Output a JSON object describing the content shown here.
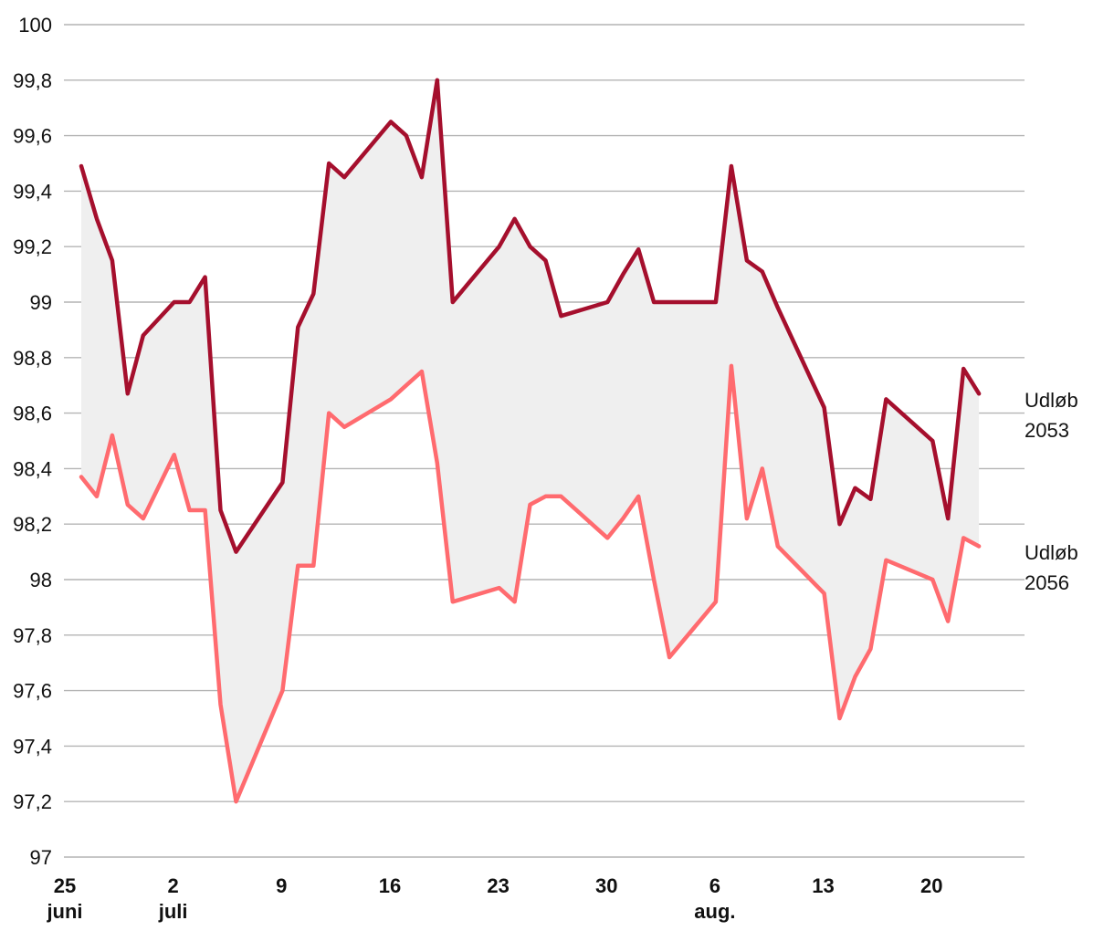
{
  "chart_data": {
    "type": "line",
    "title": "",
    "xlabel": "",
    "ylabel": "",
    "ylim": [
      97,
      100
    ],
    "yticks": [
      "100",
      "99,8",
      "99,6",
      "99,4",
      "99,2",
      "99",
      "98,8",
      "98,6",
      "98,4",
      "98,2",
      "98",
      "97,8",
      "97,6",
      "97,4",
      "97,2",
      "97"
    ],
    "xtick_labels": [
      {
        "day": 25,
        "line1": "25",
        "line2": "juni"
      },
      {
        "day": 32,
        "line1": "2",
        "line2": "juli"
      },
      {
        "day": 39,
        "line1": "9",
        "line2": ""
      },
      {
        "day": 46,
        "line1": "16",
        "line2": ""
      },
      {
        "day": 53,
        "line1": "23",
        "line2": ""
      },
      {
        "day": 60,
        "line1": "30",
        "line2": ""
      },
      {
        "day": 67,
        "line1": "6",
        "line2": "aug."
      },
      {
        "day": 74,
        "line1": "13",
        "line2": ""
      },
      {
        "day": 81,
        "line1": "20",
        "line2": ""
      }
    ],
    "x_days": [
      25,
      26,
      27,
      28,
      29,
      31,
      32,
      33,
      34,
      35,
      38,
      39,
      40,
      41,
      42,
      45,
      46,
      47,
      48,
      49,
      52,
      53,
      54,
      55,
      56,
      59,
      60,
      61,
      62,
      63,
      66,
      67,
      68,
      69,
      70,
      73,
      74,
      75,
      76,
      77,
      80,
      81,
      82,
      83
    ],
    "fill_between": true,
    "fill_color": "#efefef",
    "grid": true,
    "series": [
      {
        "name_lines": [
          "Udløb",
          "2053"
        ],
        "color": "#a50f2d",
        "values": [
          99.49,
          99.3,
          99.15,
          98.67,
          98.88,
          99.0,
          99.0,
          99.09,
          98.25,
          98.1,
          98.35,
          98.91,
          99.03,
          99.5,
          99.45,
          99.65,
          99.6,
          99.45,
          99.8,
          99.0,
          99.2,
          99.3,
          99.2,
          99.15,
          98.95,
          99.0,
          99.1,
          99.19,
          99.0,
          99.0,
          99.0,
          99.49,
          99.15,
          99.11,
          98.98,
          98.62,
          98.2,
          98.33,
          98.29,
          98.65,
          98.5,
          98.22,
          98.76,
          98.67
        ]
      },
      {
        "name_lines": [
          "Udløb",
          "2056"
        ],
        "color": "#ff6b6f",
        "values": [
          98.37,
          98.3,
          98.52,
          98.27,
          98.22,
          98.45,
          98.25,
          98.25,
          97.55,
          97.2,
          97.6,
          98.05,
          98.05,
          98.6,
          98.55,
          98.65,
          98.7,
          98.75,
          98.42,
          97.92,
          97.97,
          97.92,
          98.27,
          98.3,
          98.3,
          98.15,
          98.22,
          98.3,
          98.0,
          97.72,
          97.92,
          98.77,
          98.22,
          98.4,
          98.12,
          97.95,
          97.5,
          97.65,
          97.75,
          98.07,
          98.0,
          97.85,
          98.15,
          98.12
        ]
      }
    ]
  }
}
